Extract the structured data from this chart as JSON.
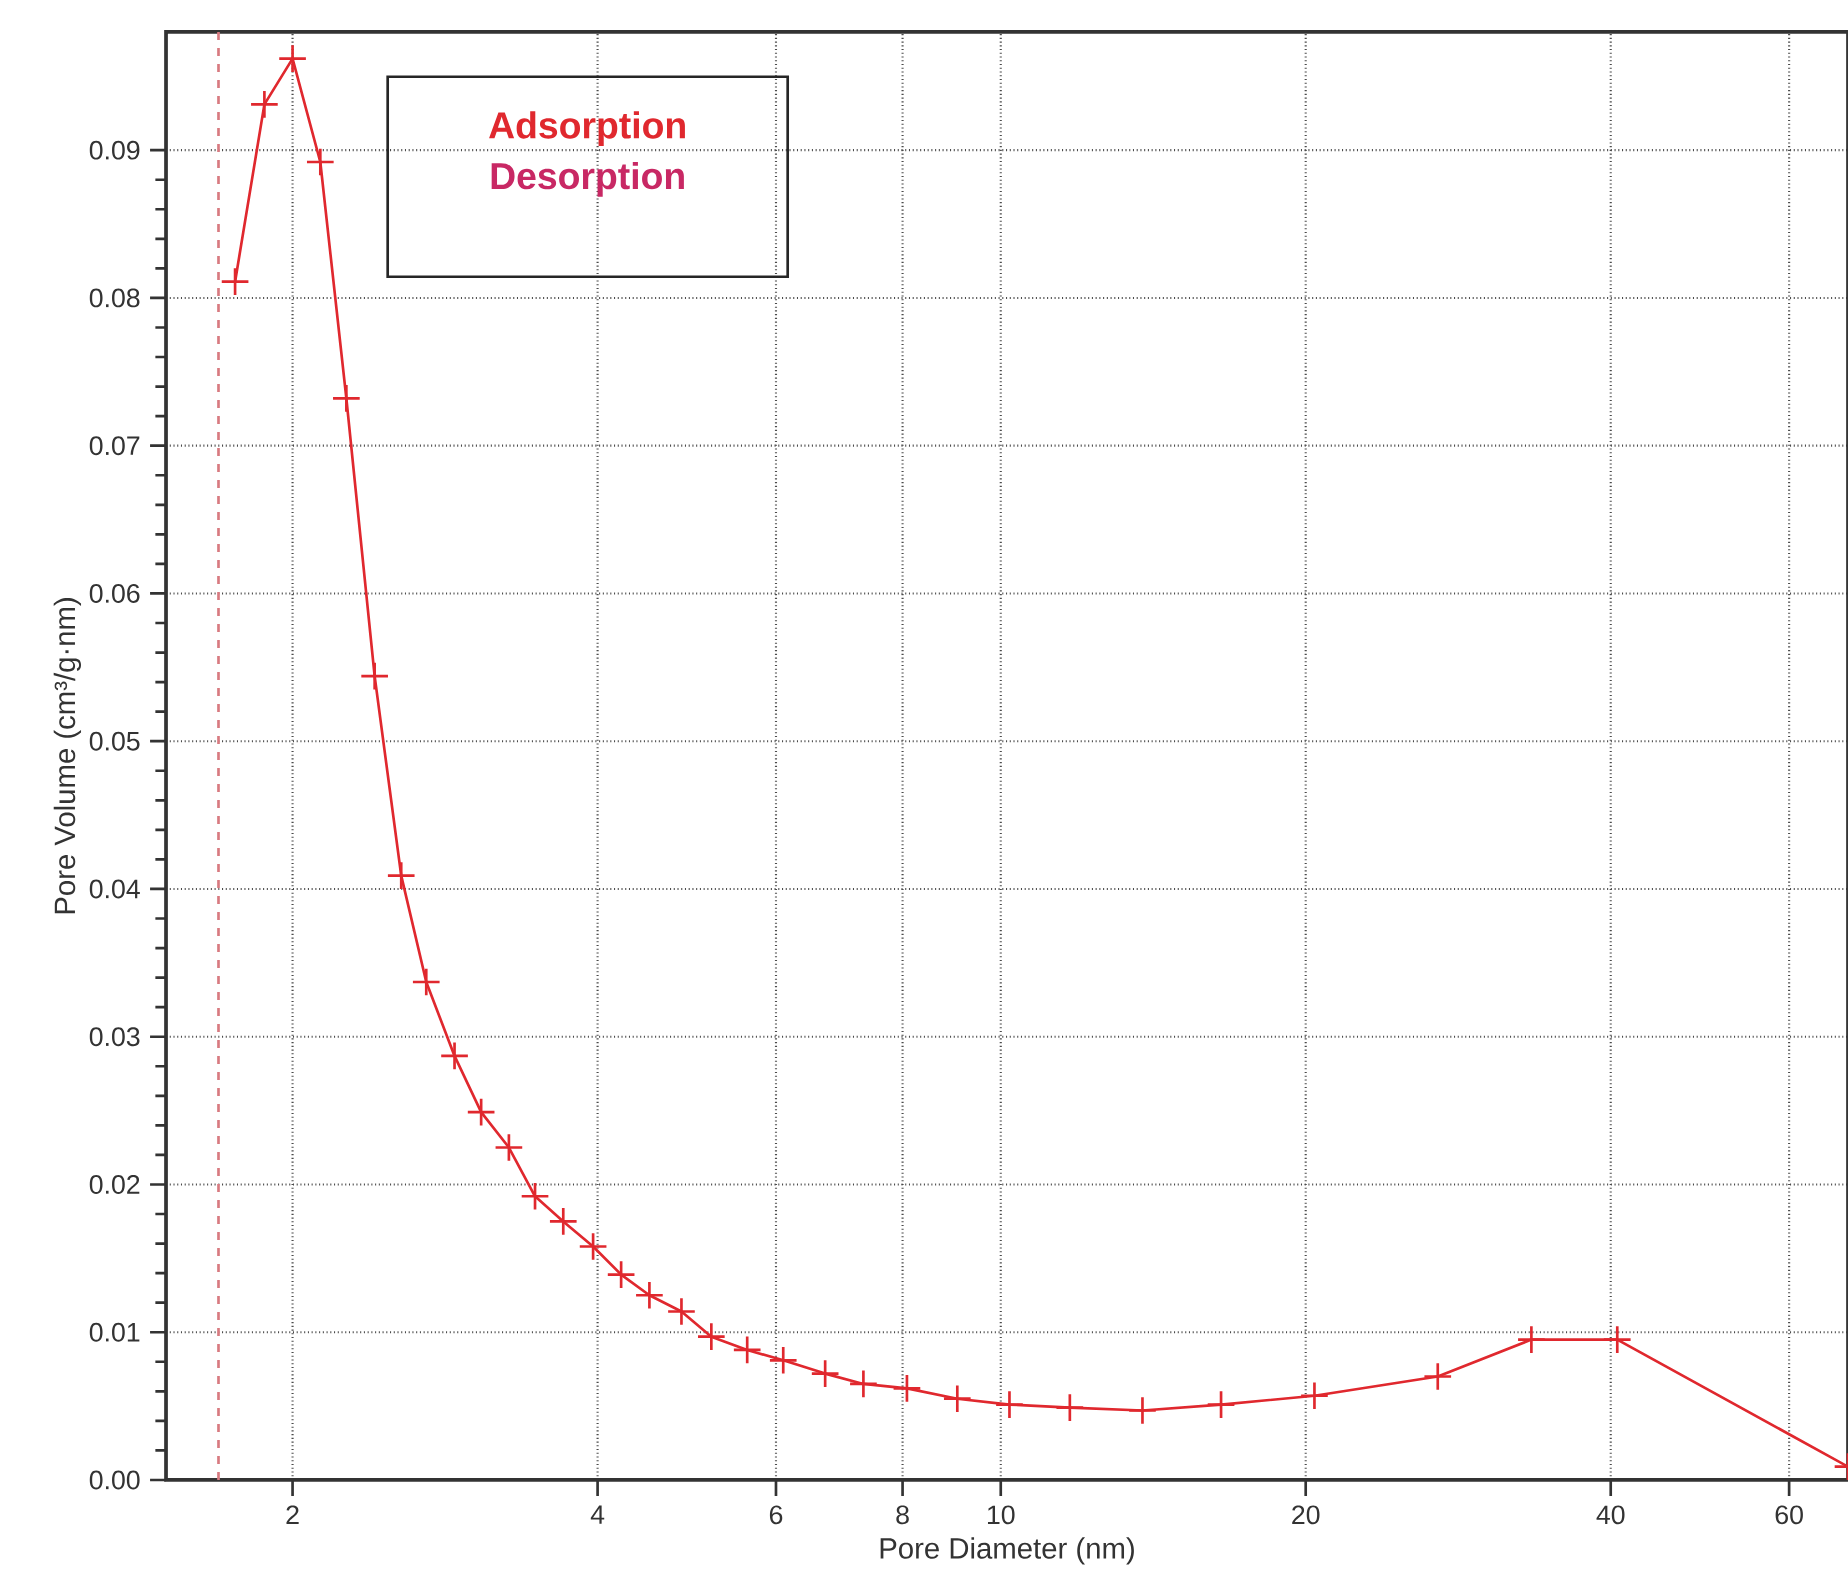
{
  "chart_data": {
    "type": "line",
    "xlabel": "Pore Diameter (nm)",
    "ylabel": "Pore Volume (cm³/g·nm)",
    "log": "x",
    "grid": true,
    "legend": "top left",
    "marker": "cross",
    "line_style": "solid",
    "xlim": [
      1.5,
      68.6
    ],
    "xticks": [
      2,
      4,
      6,
      8,
      10,
      20,
      40,
      60
    ],
    "ylim": [
      0,
      0.098
    ],
    "yticks": [
      {
        "value": 0,
        "label": "0.00"
      },
      {
        "value": 0.01,
        "label": "0.01"
      },
      {
        "value": 0.02,
        "label": "0.02"
      },
      {
        "value": 0.03,
        "label": "0.03"
      },
      {
        "value": 0.04,
        "label": "0.04"
      },
      {
        "value": 0.05,
        "label": "0.05"
      },
      {
        "value": 0.06,
        "label": "0.06"
      },
      {
        "value": 0.07,
        "label": "0.07"
      },
      {
        "value": 0.08,
        "label": "0.08"
      },
      {
        "value": 0.09,
        "label": "0.09"
      }
    ],
    "x": [
      1.755,
      1.876,
      2.0,
      2.13,
      2.26,
      2.41,
      2.56,
      2.71,
      2.89,
      3.07,
      3.27,
      3.47,
      3.7,
      3.96,
      4.22,
      4.5,
      4.84,
      5.18,
      5.62,
      6.1,
      6.71,
      7.32,
      8.08,
      9.06,
      10.2,
      11.7,
      13.8,
      16.5,
      20.4,
      27.0,
      33.4,
      40.6,
      68.6
    ],
    "series": [
      {
        "name": "Adsorption",
        "color": "#e0282e",
        "values": [
          0.0811,
          0.0931,
          0.0962,
          0.0892,
          0.0732,
          0.0544,
          0.0409,
          0.0337,
          0.0287,
          0.0249,
          0.0225,
          0.0192,
          0.0175,
          0.0158,
          0.0139,
          0.0125,
          0.0114,
          0.0097,
          0.0088,
          0.0081,
          0.0072,
          0.0065,
          0.0062,
          0.0055,
          0.0051,
          0.0049,
          0.0047,
          0.0051,
          0.0057,
          0.007,
          0.0095,
          0.0095,
          0.0009
        ]
      }
    ],
    "annotations": [
      "Desorption"
    ],
    "ref_lines": [
      {
        "axis": "x",
        "value": 1.69,
        "color": "#d87a80",
        "line_style": "dashed"
      }
    ]
  }
}
